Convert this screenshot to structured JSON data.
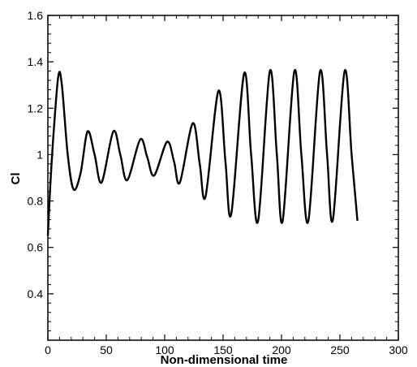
{
  "chart_data": {
    "type": "line",
    "title": "",
    "xlabel": "Non-dimensional time",
    "ylabel": "Cl",
    "xlim": [
      0,
      300
    ],
    "ylim": [
      0.2,
      1.6
    ],
    "x_ticks": [
      0,
      50,
      100,
      150,
      200,
      250,
      300
    ],
    "y_ticks": [
      0.4,
      0.6,
      0.8,
      1,
      1.2,
      1.4,
      1.6
    ],
    "x_tick_labels": [
      "0",
      "50",
      "100",
      "150",
      "200",
      "250",
      "300"
    ],
    "y_tick_labels": [
      "0.4",
      "0.6",
      "0.8",
      "1",
      "1.2",
      "1.4",
      "1.6"
    ],
    "grid": false,
    "line_color": "#000000",
    "series": [
      {
        "x": [
          0,
          2,
          5,
          9,
          12,
          17,
          22,
          28,
          34,
          40,
          46,
          56,
          62,
          68,
          79,
          85,
          91,
          102,
          108,
          113,
          124,
          130,
          135,
          146,
          152,
          157,
          168,
          174,
          180,
          190,
          196,
          201,
          211,
          217,
          223,
          233,
          239,
          244,
          254,
          260,
          265
        ],
        "y": [
          0.65,
          0.86,
          1.1,
          1.34,
          1.3,
          1.0,
          0.85,
          0.92,
          1.1,
          1.0,
          0.88,
          1.1,
          1.0,
          0.89,
          1.065,
          0.99,
          0.91,
          1.055,
          0.97,
          0.88,
          1.135,
          0.96,
          0.82,
          1.275,
          0.97,
          0.745,
          1.35,
          1.0,
          0.715,
          1.36,
          1.0,
          0.715,
          1.36,
          1.0,
          0.715,
          1.36,
          1.0,
          0.72,
          1.36,
          1.0,
          0.715
        ]
      }
    ]
  }
}
